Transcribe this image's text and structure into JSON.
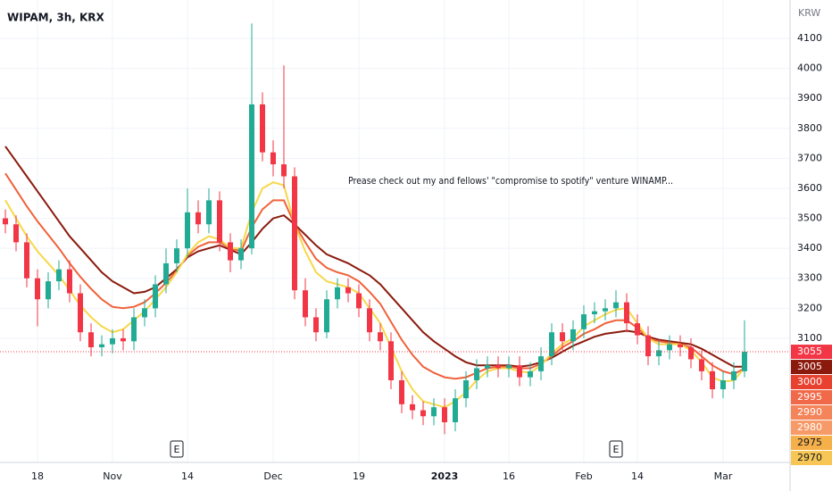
{
  "chart_data": {
    "type": "candlestick",
    "title": "WIPAM, 3h, KRX",
    "y_axis_label": "KRW",
    "annotation": "Prease check out my and fellows' \"compromise to spotify\" venture WINAMP...",
    "categories": [
      null,
      null,
      null,
      "18",
      null,
      null,
      null,
      null,
      null,
      null,
      "Nov",
      null,
      null,
      null,
      null,
      null,
      null,
      "14",
      null,
      null,
      null,
      null,
      null,
      null,
      null,
      "Dec",
      null,
      null,
      null,
      null,
      null,
      null,
      null,
      "19",
      null,
      null,
      null,
      null,
      null,
      null,
      null,
      "2023",
      null,
      null,
      null,
      null,
      null,
      "16",
      null,
      null,
      null,
      null,
      null,
      null,
      "Feb",
      null,
      null,
      null,
      null,
      "14",
      null,
      null,
      null,
      null,
      null,
      null,
      null,
      "Mar",
      null,
      null
    ],
    "open": [
      3500,
      3480,
      3420,
      3300,
      3230,
      3290,
      3330,
      3250,
      3120,
      3070,
      3080,
      3100,
      3090,
      3170,
      3200,
      3280,
      3350,
      3400,
      3520,
      3480,
      3560,
      3420,
      3360,
      3400,
      3880,
      3720,
      3680,
      3640,
      3260,
      3170,
      3120,
      3230,
      3270,
      3250,
      3200,
      3120,
      3090,
      2960,
      2880,
      2860,
      2840,
      2870,
      2820,
      2900,
      2960,
      3000,
      3010,
      3000,
      3010,
      2970,
      2990,
      3040,
      3120,
      3090,
      3130,
      3180,
      3190,
      3200,
      3220,
      3150,
      3110,
      3040,
      3060,
      3080,
      3070,
      3030,
      2990,
      2930,
      2960,
      2990
    ],
    "high": [
      3530,
      3510,
      3450,
      3330,
      3320,
      3360,
      3360,
      3280,
      3150,
      3110,
      3130,
      3130,
      3200,
      3230,
      3310,
      3400,
      3430,
      3600,
      3560,
      3600,
      3590,
      3450,
      3430,
      4150,
      3920,
      3760,
      4010,
      3670,
      3300,
      3200,
      3260,
      3300,
      3300,
      3280,
      3230,
      3150,
      3120,
      2990,
      2910,
      2890,
      2900,
      2900,
      2930,
      2990,
      3030,
      3040,
      3040,
      3040,
      3040,
      3020,
      3070,
      3150,
      3150,
      3160,
      3210,
      3220,
      3230,
      3260,
      3250,
      3180,
      3140,
      3090,
      3110,
      3110,
      3100,
      3060,
      3020,
      2990,
      3020,
      3160
    ],
    "low": [
      3450,
      3390,
      3270,
      3140,
      3200,
      3260,
      3220,
      3090,
      3040,
      3040,
      3050,
      3060,
      3060,
      3140,
      3170,
      3250,
      3320,
      3370,
      3450,
      3450,
      3390,
      3320,
      3330,
      3380,
      3690,
      3640,
      3600,
      3230,
      3140,
      3090,
      3100,
      3200,
      3220,
      3170,
      3090,
      3060,
      2930,
      2850,
      2830,
      2810,
      2810,
      2780,
      2790,
      2870,
      2930,
      2970,
      2970,
      2970,
      2940,
      2940,
      2960,
      3010,
      3060,
      3060,
      3100,
      3150,
      3160,
      3170,
      3120,
      3080,
      3010,
      3010,
      3030,
      3040,
      3000,
      2960,
      2900,
      2900,
      2930,
      2970
    ],
    "close": [
      3480,
      3420,
      3300,
      3230,
      3290,
      3330,
      3250,
      3120,
      3070,
      3080,
      3100,
      3090,
      3170,
      3200,
      3280,
      3350,
      3400,
      3520,
      3480,
      3560,
      3420,
      3360,
      3400,
      3880,
      3720,
      3680,
      3640,
      3260,
      3170,
      3120,
      3230,
      3270,
      3250,
      3200,
      3120,
      3090,
      2960,
      2880,
      2860,
      2840,
      2870,
      2820,
      2900,
      2960,
      3000,
      3010,
      3000,
      3010,
      2970,
      2990,
      3040,
      3120,
      3090,
      3130,
      3180,
      3190,
      3200,
      3220,
      3150,
      3110,
      3040,
      3060,
      3080,
      3070,
      3030,
      2990,
      2930,
      2960,
      2990,
      3055
    ],
    "up_color": "#22ab94",
    "down_color": "#f23645",
    "lines": [
      {
        "color": "#8b1a0d",
        "values": [
          3740,
          3690,
          3640,
          3590,
          3540,
          3490,
          3440,
          3400,
          3360,
          3320,
          3290,
          3270,
          3250,
          3255,
          3270,
          3300,
          3330,
          3370,
          3390,
          3400,
          3410,
          3395,
          3380,
          3420,
          3465,
          3500,
          3510,
          3480,
          3445,
          3410,
          3380,
          3365,
          3350,
          3330,
          3310,
          3280,
          3240,
          3200,
          3160,
          3120,
          3090,
          3065,
          3040,
          3020,
          3010,
          3010,
          3010,
          3010,
          3005,
          3010,
          3020,
          3035,
          3055,
          3075,
          3090,
          3105,
          3115,
          3120,
          3125,
          3120,
          3105,
          3095,
          3090,
          3085,
          3080,
          3065,
          3045,
          3025,
          3005,
          3005
        ]
      },
      {
        "color": "#f0623a",
        "values": [
          3650,
          3595,
          3540,
          3490,
          3445,
          3400,
          3350,
          3305,
          3265,
          3230,
          3205,
          3200,
          3205,
          3220,
          3250,
          3285,
          3325,
          3375,
          3405,
          3420,
          3420,
          3400,
          3390,
          3470,
          3530,
          3560,
          3560,
          3480,
          3420,
          3365,
          3335,
          3320,
          3310,
          3290,
          3255,
          3215,
          3155,
          3095,
          3045,
          3005,
          2985,
          2970,
          2965,
          2970,
          2985,
          3000,
          3005,
          3005,
          3000,
          3000,
          3015,
          3040,
          3070,
          3090,
          3115,
          3130,
          3150,
          3160,
          3160,
          3135,
          3100,
          3090,
          3085,
          3080,
          3070,
          3040,
          3010,
          2990,
          2980,
          3000
        ]
      },
      {
        "color": "#f7d84a",
        "values": [
          3560,
          3500,
          3440,
          3390,
          3350,
          3310,
          3260,
          3210,
          3170,
          3140,
          3120,
          3130,
          3160,
          3190,
          3230,
          3270,
          3320,
          3380,
          3420,
          3440,
          3430,
          3400,
          3400,
          3520,
          3600,
          3620,
          3610,
          3480,
          3390,
          3320,
          3290,
          3280,
          3270,
          3250,
          3200,
          3150,
          3070,
          2990,
          2930,
          2890,
          2880,
          2870,
          2890,
          2920,
          2960,
          2990,
          3000,
          3000,
          2990,
          2985,
          3010,
          3050,
          3080,
          3100,
          3140,
          3160,
          3180,
          3195,
          3200,
          3150,
          3100,
          3080,
          3080,
          3080,
          3060,
          3020,
          2970,
          2955,
          2960,
          3000
        ]
      }
    ],
    "price_labels": [
      {
        "value": 3055,
        "color": "#f23645"
      },
      {
        "value": 3005,
        "color": "#8b1a0d"
      },
      {
        "value": 3000,
        "color": "#e8412f"
      },
      {
        "value": 2995,
        "color": "#f06a4a"
      },
      {
        "value": 2990,
        "color": "#f4845a"
      },
      {
        "value": 2980,
        "color": "#f69a68"
      },
      {
        "value": 2975,
        "color": "#f5b04a"
      },
      {
        "value": 2970,
        "color": "#f7c654"
      }
    ],
    "events": [
      {
        "label": "E",
        "category_index": 16
      },
      {
        "label": "E",
        "category_index": 57
      }
    ],
    "ylim": [
      2686,
      4228
    ],
    "yticks": [
      3100,
      3200,
      3300,
      3400,
      3500,
      3600,
      3700,
      3800,
      3900,
      4000,
      4100
    ],
    "grid": true
  }
}
